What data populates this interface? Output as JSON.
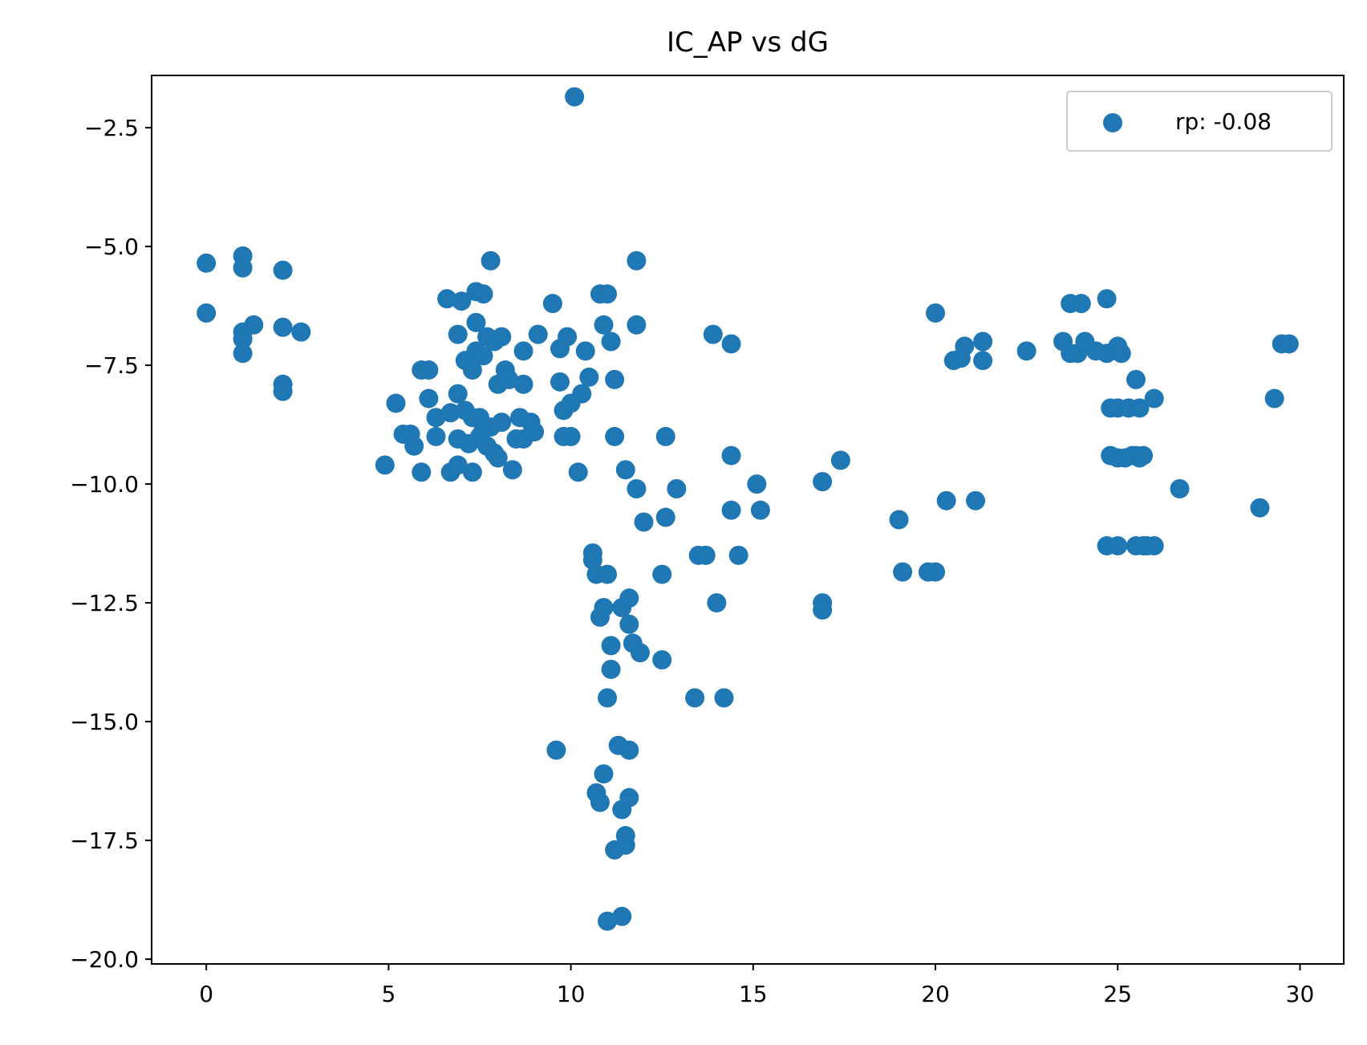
{
  "chart_data": {
    "type": "scatter",
    "title": "IC_AP vs dG",
    "xlabel": "",
    "ylabel": "",
    "xlim": [
      -1.5,
      31.2
    ],
    "ylim": [
      -20.1,
      -1.4
    ],
    "xticks": [
      0,
      5,
      10,
      15,
      20,
      25,
      30
    ],
    "xtick_labels": [
      "0",
      "5",
      "10",
      "15",
      "20",
      "25",
      "30"
    ],
    "yticks": [
      -2.5,
      -5.0,
      -7.5,
      -10.0,
      -12.5,
      -15.0,
      -17.5,
      -20.0
    ],
    "ytick_labels": [
      "−2.5",
      "−5.0",
      "−7.5",
      "−10.0",
      "−12.5",
      "−15.0",
      "−17.5",
      "−20.0"
    ],
    "grid": false,
    "legend_position": "top-right",
    "series": [
      {
        "name": "rp: -0.08",
        "color": "#1f77b4",
        "points": [
          [
            0,
            -5.35
          ],
          [
            0,
            -6.4
          ],
          [
            1,
            -5.2
          ],
          [
            1,
            -5.45
          ],
          [
            1,
            -6.8
          ],
          [
            1,
            -6.95
          ],
          [
            1,
            -7.25
          ],
          [
            1.3,
            -6.65
          ],
          [
            2.1,
            -5.5
          ],
          [
            2.1,
            -6.7
          ],
          [
            2.1,
            -7.9
          ],
          [
            2.1,
            -8.05
          ],
          [
            2.6,
            -6.8
          ],
          [
            4.9,
            -9.6
          ],
          [
            5.2,
            -8.3
          ],
          [
            5.4,
            -8.95
          ],
          [
            5.6,
            -8.95
          ],
          [
            5.7,
            -9.2
          ],
          [
            5.9,
            -7.6
          ],
          [
            5.9,
            -9.75
          ],
          [
            6.1,
            -7.6
          ],
          [
            6.1,
            -8.2
          ],
          [
            6.3,
            -8.6
          ],
          [
            6.3,
            -9.0
          ],
          [
            6.6,
            -6.1
          ],
          [
            6.7,
            -8.5
          ],
          [
            6.7,
            -9.75
          ],
          [
            6.9,
            -6.85
          ],
          [
            6.9,
            -8.1
          ],
          [
            6.9,
            -9.05
          ],
          [
            6.9,
            -9.6
          ],
          [
            7.0,
            -6.15
          ],
          [
            7.1,
            -7.4
          ],
          [
            7.1,
            -8.45
          ],
          [
            7.2,
            -9.15
          ],
          [
            7.3,
            -7.6
          ],
          [
            7.3,
            -8.6
          ],
          [
            7.3,
            -9.75
          ],
          [
            7.4,
            -5.95
          ],
          [
            7.4,
            -6.6
          ],
          [
            7.4,
            -7.2
          ],
          [
            7.5,
            -8.6
          ],
          [
            7.5,
            -9.0
          ],
          [
            7.6,
            -6.0
          ],
          [
            7.6,
            -7.3
          ],
          [
            7.6,
            -8.85
          ],
          [
            7.7,
            -6.9
          ],
          [
            7.7,
            -9.2
          ],
          [
            7.8,
            -5.3
          ],
          [
            7.8,
            -8.8
          ],
          [
            7.9,
            -7.0
          ],
          [
            7.9,
            -9.35
          ],
          [
            8.0,
            -7.9
          ],
          [
            8.0,
            -9.45
          ],
          [
            8.1,
            -6.9
          ],
          [
            8.1,
            -8.7
          ],
          [
            8.2,
            -7.6
          ],
          [
            8.3,
            -7.8
          ],
          [
            8.4,
            -9.7
          ],
          [
            8.5,
            -9.05
          ],
          [
            8.6,
            -8.6
          ],
          [
            8.7,
            -7.2
          ],
          [
            8.7,
            -7.9
          ],
          [
            8.7,
            -9.05
          ],
          [
            8.9,
            -8.7
          ],
          [
            9.0,
            -8.9
          ],
          [
            9.1,
            -6.85
          ],
          [
            9.5,
            -6.2
          ],
          [
            9.6,
            -15.6
          ],
          [
            9.7,
            -7.15
          ],
          [
            9.7,
            -7.85
          ],
          [
            9.8,
            -8.45
          ],
          [
            9.8,
            -9.0
          ],
          [
            9.9,
            -6.9
          ],
          [
            10.0,
            -8.3
          ],
          [
            10.0,
            -9.0
          ],
          [
            10.1,
            -1.85
          ],
          [
            10.2,
            -9.75
          ],
          [
            10.3,
            -8.1
          ],
          [
            10.4,
            -7.2
          ],
          [
            10.5,
            -7.75
          ],
          [
            10.6,
            -11.45
          ],
          [
            10.6,
            -11.6
          ],
          [
            10.7,
            -11.9
          ],
          [
            10.7,
            -16.5
          ],
          [
            10.8,
            -6.0
          ],
          [
            10.8,
            -12.8
          ],
          [
            10.8,
            -16.7
          ],
          [
            10.9,
            -6.65
          ],
          [
            10.9,
            -12.6
          ],
          [
            10.9,
            -16.1
          ],
          [
            11.0,
            -6.0
          ],
          [
            11.0,
            -11.9
          ],
          [
            11.0,
            -14.5
          ],
          [
            11.0,
            -19.2
          ],
          [
            11.1,
            -7.0
          ],
          [
            11.1,
            -13.4
          ],
          [
            11.1,
            -13.9
          ],
          [
            11.2,
            -7.8
          ],
          [
            11.2,
            -9.0
          ],
          [
            11.2,
            -17.7
          ],
          [
            11.3,
            -15.5
          ],
          [
            11.4,
            -12.6
          ],
          [
            11.4,
            -16.85
          ],
          [
            11.4,
            -19.1
          ],
          [
            11.5,
            -9.7
          ],
          [
            11.5,
            -17.4
          ],
          [
            11.5,
            -17.6
          ],
          [
            11.6,
            -12.4
          ],
          [
            11.6,
            -12.95
          ],
          [
            11.6,
            -15.6
          ],
          [
            11.6,
            -16.6
          ],
          [
            11.7,
            -13.35
          ],
          [
            11.8,
            -5.3
          ],
          [
            11.8,
            -6.65
          ],
          [
            11.8,
            -10.1
          ],
          [
            11.9,
            -13.55
          ],
          [
            12.0,
            -10.8
          ],
          [
            12.5,
            -11.9
          ],
          [
            12.5,
            -13.7
          ],
          [
            12.6,
            -9.0
          ],
          [
            12.6,
            -10.7
          ],
          [
            12.9,
            -10.1
          ],
          [
            13.4,
            -14.5
          ],
          [
            13.5,
            -11.5
          ],
          [
            13.7,
            -11.5
          ],
          [
            13.9,
            -6.85
          ],
          [
            14.0,
            -12.5
          ],
          [
            14.2,
            -14.5
          ],
          [
            14.4,
            -7.05
          ],
          [
            14.4,
            -9.4
          ],
          [
            14.4,
            -10.55
          ],
          [
            14.6,
            -11.5
          ],
          [
            15.1,
            -10.0
          ],
          [
            15.2,
            -10.55
          ],
          [
            16.9,
            -9.95
          ],
          [
            16.9,
            -12.5
          ],
          [
            16.9,
            -12.65
          ],
          [
            17.4,
            -9.5
          ],
          [
            19.0,
            -10.75
          ],
          [
            19.1,
            -11.85
          ],
          [
            19.8,
            -11.85
          ],
          [
            20.0,
            -11.85
          ],
          [
            20.0,
            -6.4
          ],
          [
            20.3,
            -10.35
          ],
          [
            20.5,
            -7.4
          ],
          [
            20.7,
            -7.35
          ],
          [
            20.8,
            -7.1
          ],
          [
            21.1,
            -10.35
          ],
          [
            21.3,
            -7.0
          ],
          [
            21.3,
            -7.4
          ],
          [
            22.5,
            -7.2
          ],
          [
            23.5,
            -7.0
          ],
          [
            23.7,
            -6.2
          ],
          [
            23.7,
            -7.25
          ],
          [
            23.9,
            -7.25
          ],
          [
            24.0,
            -6.2
          ],
          [
            24.1,
            -7.0
          ],
          [
            24.4,
            -7.2
          ],
          [
            24.7,
            -6.1
          ],
          [
            24.7,
            -7.25
          ],
          [
            24.7,
            -11.3
          ],
          [
            24.8,
            -8.4
          ],
          [
            24.8,
            -9.4
          ],
          [
            25.0,
            -7.1
          ],
          [
            25.0,
            -8.4
          ],
          [
            25.0,
            -9.45
          ],
          [
            25.0,
            -11.3
          ],
          [
            25.1,
            -7.25
          ],
          [
            25.2,
            -9.45
          ],
          [
            25.3,
            -8.4
          ],
          [
            25.4,
            -9.4
          ],
          [
            25.5,
            -7.8
          ],
          [
            25.5,
            -9.4
          ],
          [
            25.5,
            -11.3
          ],
          [
            25.6,
            -8.4
          ],
          [
            25.6,
            -9.45
          ],
          [
            25.7,
            -9.4
          ],
          [
            25.7,
            -11.3
          ],
          [
            25.8,
            -11.3
          ],
          [
            26.0,
            -8.2
          ],
          [
            26.0,
            -11.3
          ],
          [
            26.7,
            -10.1
          ],
          [
            28.9,
            -10.5
          ],
          [
            29.3,
            -8.2
          ],
          [
            29.5,
            -7.05
          ],
          [
            29.7,
            -7.05
          ]
        ]
      }
    ]
  }
}
